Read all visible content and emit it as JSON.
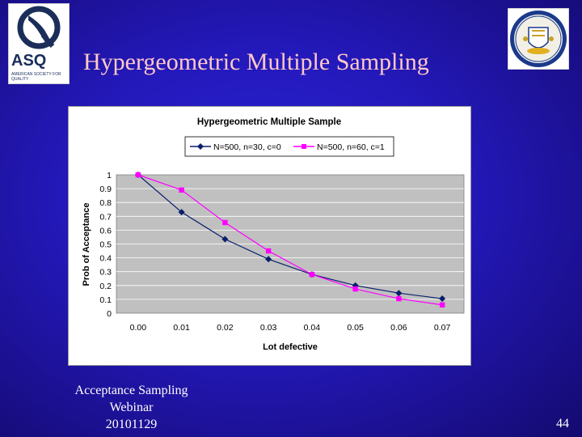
{
  "slide": {
    "title": "Hypergeometric Multiple Sampling",
    "footer_lines": [
      "Acceptance Sampling",
      "Webinar",
      "20101129"
    ],
    "page_number": "44"
  },
  "logos": {
    "left_logo": {
      "text": "ASQ",
      "subtext": "AMERICAN SOCIETY FOR QUALITY",
      "color": "#1b2e5a"
    },
    "right_logo": {
      "icon": "seal-icon"
    }
  },
  "colors": {
    "title": "#ffc8c8",
    "plot_bg": "#c0c0c0",
    "series1": "#0a1f6b",
    "series2": "#ff00ff"
  },
  "chart_data": {
    "type": "line",
    "title": "Hypergeometric Multiple Sample",
    "xlabel": "Lot defective",
    "ylabel": "Prob of Acceptance",
    "categories": [
      "0.00",
      "0.01",
      "0.02",
      "0.03",
      "0.04",
      "0.05",
      "0.06",
      "0.07"
    ],
    "ylim": [
      0,
      1
    ],
    "yticks": [
      "0",
      "0.1",
      "0.2",
      "0.3",
      "0.4",
      "0.5",
      "0.6",
      "0.7",
      "0.8",
      "0.9",
      "1"
    ],
    "grid": true,
    "legend_position": "top",
    "series": [
      {
        "name": "N=500, n=30, c=0",
        "values": [
          1.0,
          0.73,
          0.535,
          0.39,
          0.28,
          0.2,
          0.145,
          0.105
        ],
        "marker": "diamond",
        "color": "#0a1f6b"
      },
      {
        "name": "N=500, n=60, c=1",
        "values": [
          1.0,
          0.89,
          0.655,
          0.45,
          0.28,
          0.175,
          0.105,
          0.06
        ],
        "marker": "square",
        "color": "#ff00ff"
      }
    ]
  }
}
